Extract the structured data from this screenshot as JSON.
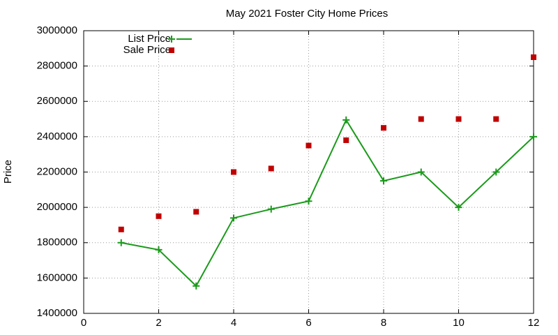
{
  "chart_data": {
    "type": "line",
    "title": "May 2021 Foster City Home Prices",
    "y_label": "Price",
    "x": [
      1,
      2,
      3,
      4,
      5,
      6,
      7,
      8,
      9,
      10,
      11,
      12
    ],
    "series": [
      {
        "name": "List Price",
        "color": "#1a9a1a",
        "mode": "lines+markers",
        "marker": "plus",
        "values": [
          1800000,
          1760000,
          1555000,
          1940000,
          1990000,
          2035000,
          2495000,
          2150000,
          2200000,
          2000000,
          2200000,
          2400000
        ]
      },
      {
        "name": "Sale Price",
        "color": "#c00000",
        "mode": "markers",
        "marker": "square",
        "values": [
          1875000,
          1950000,
          1975000,
          2200000,
          2220000,
          2350000,
          2380000,
          2450000,
          2500000,
          2500000,
          2500000,
          2850000
        ]
      }
    ],
    "xlim": [
      0,
      12
    ],
    "xticks": [
      0,
      2,
      4,
      6,
      8,
      10,
      12
    ],
    "ylim": [
      1400000,
      3000000
    ],
    "yticks": [
      1400000,
      1600000,
      1800000,
      2000000,
      2200000,
      2400000,
      2600000,
      2800000,
      3000000
    ],
    "grid": true,
    "legend": "top-left"
  }
}
